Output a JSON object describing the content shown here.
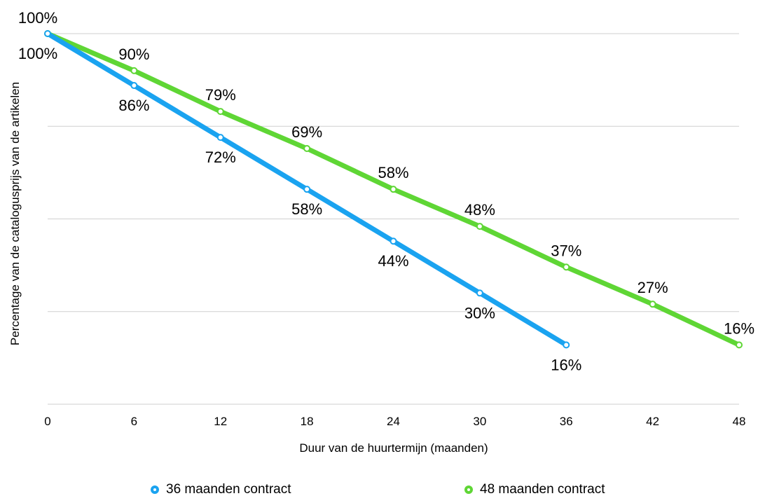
{
  "chart_data": {
    "type": "line",
    "xlabel": "Duur van de huurtermijn (maanden)",
    "ylabel": "Percentage van de catalogusprijs van de artikelen",
    "x_ticks": [
      0,
      6,
      12,
      18,
      24,
      30,
      36,
      42,
      48
    ],
    "xlim": [
      0,
      48
    ],
    "ylim": [
      0,
      100
    ],
    "grid": "horizontal",
    "legend_position": "bottom",
    "series": [
      {
        "name": "36 maanden contract",
        "color": "#1aa3f0",
        "x": [
          0,
          6,
          12,
          18,
          24,
          30,
          36
        ],
        "values": [
          100,
          86,
          72,
          58,
          44,
          30,
          16
        ],
        "labels": [
          "100%",
          "86%",
          "72%",
          "58%",
          "44%",
          "30%",
          "16%"
        ]
      },
      {
        "name": "48 maanden contract",
        "color": "#5fd635",
        "x": [
          0,
          6,
          12,
          18,
          24,
          30,
          36,
          42,
          48
        ],
        "values": [
          100,
          90,
          79,
          69,
          58,
          48,
          37,
          27,
          16
        ],
        "labels": [
          "100%",
          "90%",
          "79%",
          "69%",
          "58%",
          "48%",
          "37%",
          "27%",
          "16%"
        ]
      }
    ]
  }
}
